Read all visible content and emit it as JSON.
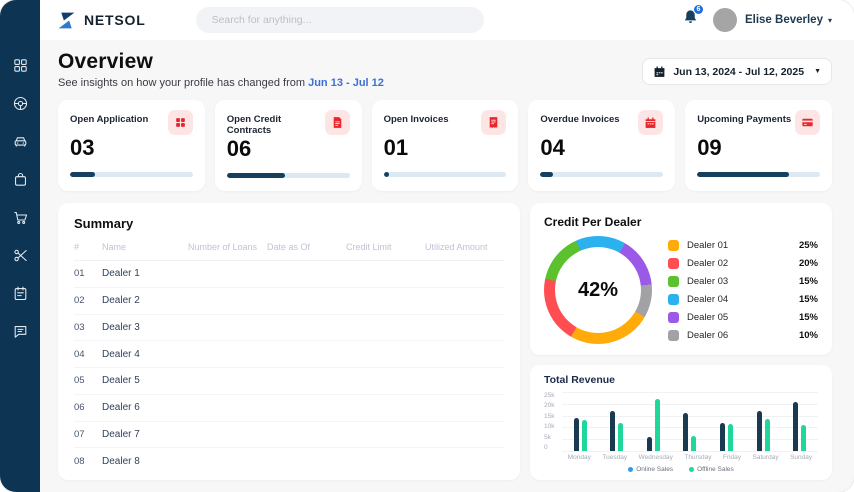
{
  "brand": {
    "name": "NETSOL"
  },
  "header": {
    "search_placeholder": "Search for anything...",
    "notification_count": "6",
    "user_name": "Elise Beverley"
  },
  "sidebar": {
    "items": [
      {
        "icon": "dashboard-grid-icon"
      },
      {
        "icon": "steering-wheel-icon"
      },
      {
        "icon": "car-icon"
      },
      {
        "icon": "bag-icon"
      },
      {
        "icon": "cart-icon"
      },
      {
        "icon": "scissors-icon"
      },
      {
        "icon": "planner-icon"
      },
      {
        "icon": "chat-icon"
      }
    ]
  },
  "page": {
    "title": "Overview",
    "subtitle_prefix": "See insights on how your profile has changed from ",
    "subtitle_range": "Jun 13 - Jul 12",
    "date_range_label": "Jun 13, 2024 - Jul 12, 2025"
  },
  "stats": [
    {
      "label": "Open Application",
      "value": "03",
      "icon": "grid",
      "progress_pct": 20
    },
    {
      "label": "Open Credit Contracts",
      "value": "06",
      "icon": "contract",
      "progress_pct": 47
    },
    {
      "label": "Open Invoices",
      "value": "01",
      "icon": "invoice",
      "progress_pct": 4
    },
    {
      "label": "Overdue Invoices",
      "value": "04",
      "icon": "calendar",
      "progress_pct": 10
    },
    {
      "label": "Upcoming Payments",
      "value": "09",
      "icon": "credit-card",
      "progress_pct": 75
    }
  ],
  "summary": {
    "title": "Summary",
    "columns": [
      "#",
      "Name",
      "Number of Loans",
      "Date as Of",
      "Credit Limit",
      "Utilized Amount"
    ],
    "placeholder_columns": 4,
    "rows": [
      {
        "num": "01",
        "name": "Dealer 1"
      },
      {
        "num": "02",
        "name": "Dealer 2"
      },
      {
        "num": "03",
        "name": "Dealer 3"
      },
      {
        "num": "04",
        "name": "Dealer 4"
      },
      {
        "num": "05",
        "name": "Dealer 5"
      },
      {
        "num": "06",
        "name": "Dealer 6"
      },
      {
        "num": "07",
        "name": "Dealer 7"
      },
      {
        "num": "08",
        "name": "Dealer 8"
      }
    ]
  },
  "chart_data": [
    {
      "type": "pie",
      "variant": "donut",
      "title": "Credit Per Dealer",
      "center_label": "42%",
      "labels": [
        "Dealer 01",
        "Dealer 02",
        "Dealer 03",
        "Dealer 04",
        "Dealer 05",
        "Dealer 06"
      ],
      "values": [
        25,
        20,
        15,
        15,
        15,
        10
      ],
      "value_labels": [
        "25%",
        "20%",
        "15%",
        "15%",
        "15%",
        "10%"
      ],
      "colors": [
        "#FFAC0A",
        "#FF4D52",
        "#5BC22E",
        "#2CB1EF",
        "#9B59E8",
        "#A2A2A6"
      ],
      "legend_position": "right",
      "start_angle_deg": 120
    },
    {
      "type": "bar",
      "title": "Total Revenue",
      "categories": [
        "Monday",
        "Tuesday",
        "Wednesday",
        "Thursday",
        "Friday",
        "Saturday",
        "Sunday"
      ],
      "series": [
        {
          "name": "Online Sales",
          "color": "#1A3A52",
          "legend_color": "#2E9BF0",
          "values": [
            14000,
            17000,
            6000,
            16000,
            12000,
            17000,
            21000
          ]
        },
        {
          "name": "Offline Sales",
          "color": "#1FD79A",
          "legend_color": "#1FD79A",
          "values": [
            13000,
            12000,
            22000,
            6500,
            11500,
            13500,
            11000
          ]
        }
      ],
      "ylim": [
        0,
        25000
      ],
      "ytick_labels": [
        "25k",
        "20k",
        "15k",
        "10k",
        "5k",
        "0"
      ],
      "grid": true,
      "legend_position": "bottom"
    }
  ],
  "colors": {
    "sidebar_bg": "#0D3452",
    "accent_navy": "#16405F",
    "progress_track": "#DCE8F2",
    "icon_red": "#E8262C",
    "icon_red_bg": "#FDE5E5",
    "link_blue": "#3D6FD6",
    "badge_blue": "#1B6DE0"
  }
}
